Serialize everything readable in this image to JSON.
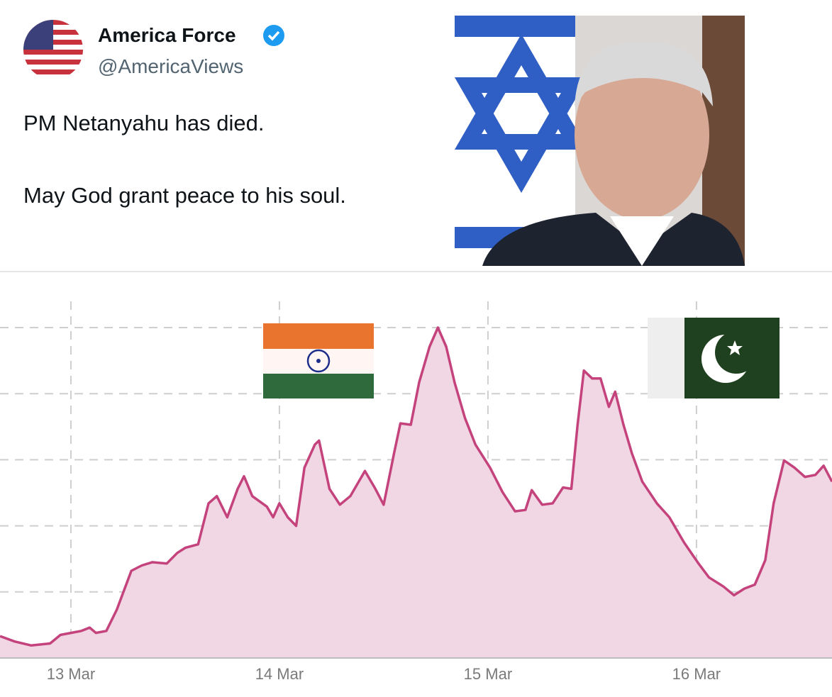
{
  "tweet": {
    "author_name": "America Force",
    "handle": "@AmericaViews",
    "text_lines": [
      "PM Netanyahu  has died.",
      "May God grant peace to his soul."
    ]
  },
  "chart_data": {
    "type": "area",
    "x": [
      -0.34,
      -0.27,
      -0.19,
      -0.1,
      -0.05,
      0,
      0.05,
      0.09,
      0.12,
      0.17,
      0.22,
      0.29,
      0.34,
      0.39,
      0.46,
      0.51,
      0.55,
      0.61,
      0.66,
      0.7,
      0.75,
      0.8,
      0.83,
      0.87,
      0.94,
      0.97,
      1.0,
      1.04,
      1.08,
      1.12,
      1.17,
      1.19,
      1.24,
      1.29,
      1.34,
      1.41,
      1.46,
      1.5,
      1.55,
      1.58,
      1.63,
      1.67,
      1.72,
      1.76,
      1.8,
      1.84,
      1.89,
      1.94,
      2.01,
      2.07,
      2.13,
      2.18,
      2.21,
      2.26,
      2.31,
      2.36,
      2.4,
      2.43,
      2.46,
      2.5,
      2.54,
      2.58,
      2.61,
      2.65,
      2.69,
      2.74,
      2.81,
      2.87,
      2.94,
      3.01,
      3.06,
      3.13,
      3.18,
      3.23,
      3.28,
      3.33,
      3.37,
      3.42,
      3.47,
      3.52,
      3.57,
      3.61,
      3.65
    ],
    "values": [
      0.33,
      0.25,
      0.19,
      0.22,
      0.35,
      0.38,
      0.41,
      0.46,
      0.38,
      0.41,
      0.73,
      1.32,
      1.4,
      1.45,
      1.43,
      1.59,
      1.67,
      1.72,
      2.34,
      2.45,
      2.13,
      2.56,
      2.75,
      2.45,
      2.29,
      2.13,
      2.34,
      2.13,
      2.0,
      2.88,
      3.23,
      3.29,
      2.56,
      2.32,
      2.45,
      2.83,
      2.56,
      2.32,
      3.1,
      3.55,
      3.53,
      4.17,
      4.71,
      5.0,
      4.71,
      4.17,
      3.63,
      3.23,
      2.88,
      2.51,
      2.22,
      2.24,
      2.54,
      2.32,
      2.34,
      2.58,
      2.56,
      3.53,
      4.35,
      4.23,
      4.23,
      3.8,
      4.03,
      3.53,
      3.1,
      2.67,
      2.34,
      2.13,
      1.75,
      1.43,
      1.22,
      1.08,
      0.95,
      1.05,
      1.11,
      1.48,
      2.34,
      2.99,
      2.88,
      2.74,
      2.77,
      2.91,
      2.67
    ],
    "color": "#c4437c",
    "fill_color": "#f1d6e3",
    "xlim": [
      -0.34,
      3.65
    ],
    "xticks": [
      {
        "value": 0,
        "label": "13 Mar"
      },
      {
        "value": 1,
        "label": "14 Mar"
      },
      {
        "value": 2,
        "label": "15 Mar"
      },
      {
        "value": 3,
        "label": "16 Mar"
      }
    ],
    "ylim": [
      0,
      5
    ],
    "yticks": [
      1,
      2,
      3,
      4,
      5
    ],
    "grid": true
  }
}
